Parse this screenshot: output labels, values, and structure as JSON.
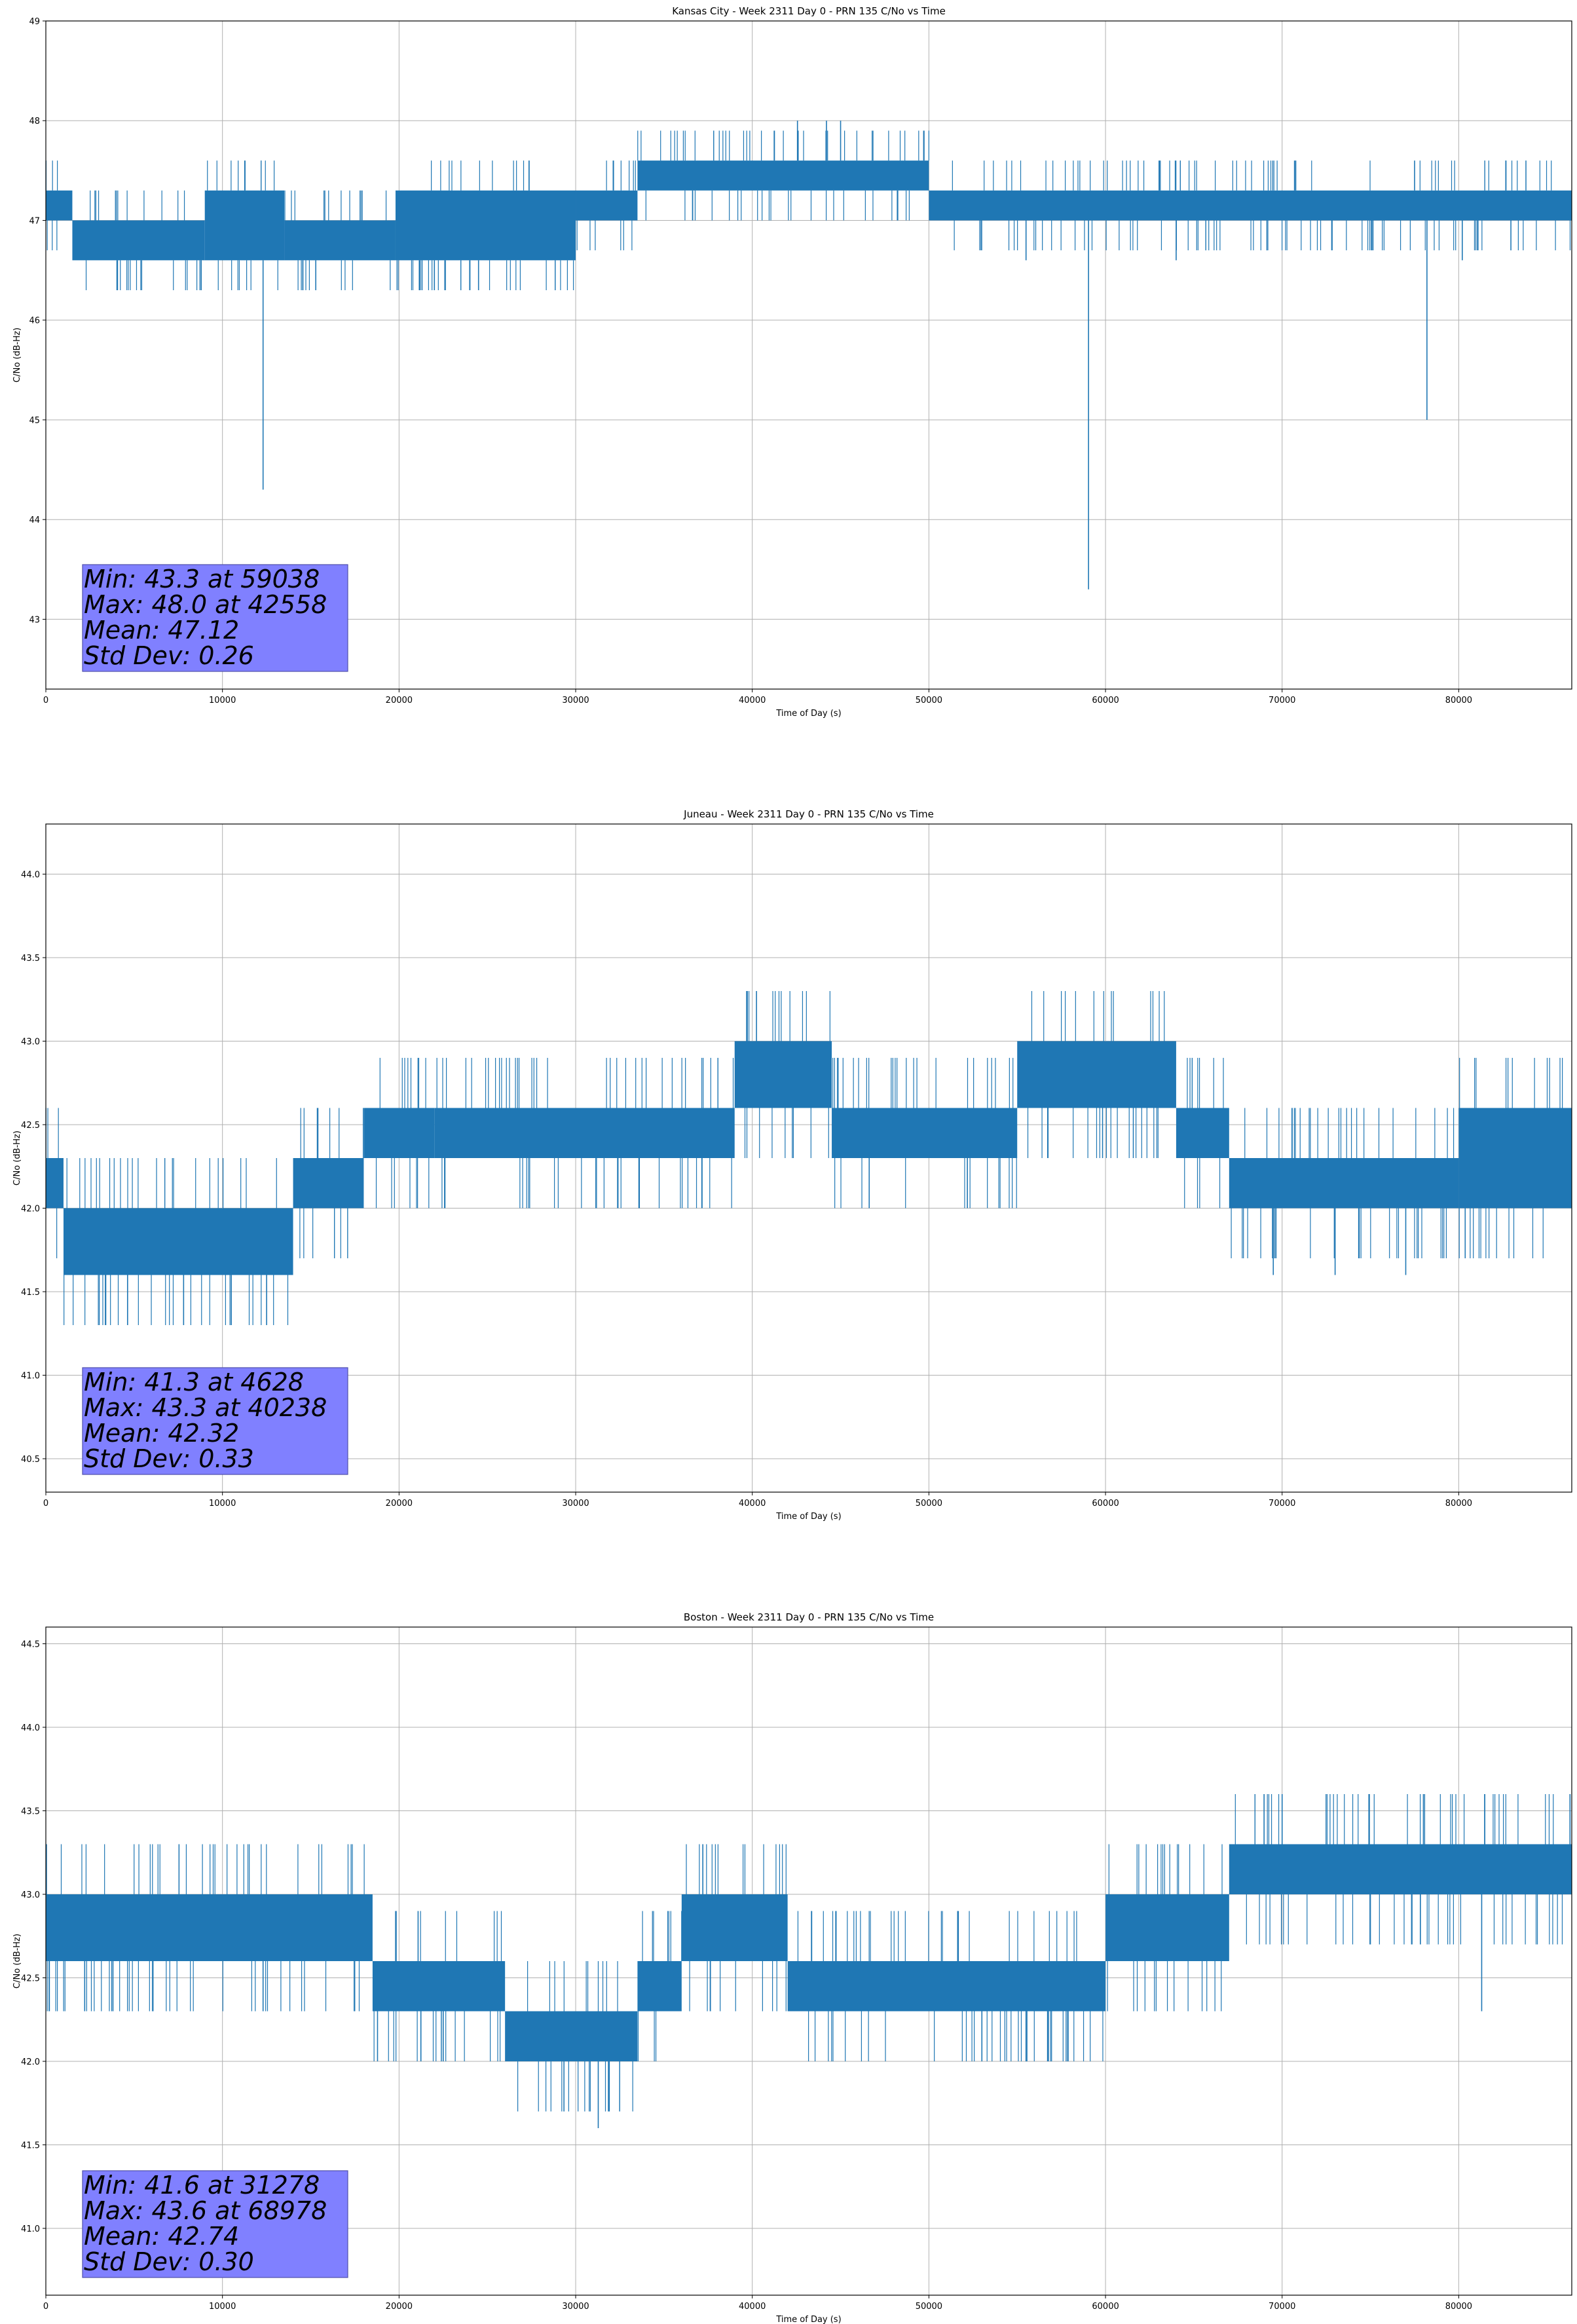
{
  "chart_data": [
    {
      "type": "line",
      "title": "Kansas City - Week 2311 Day 0 - PRN 135 C/No vs Time",
      "xlabel": "Time of Day (s)",
      "ylabel": "C/No (dB-Hz)",
      "xlim": [
        0,
        86400
      ],
      "ylim": [
        42.3,
        49.0
      ],
      "xticks": [
        0,
        10000,
        20000,
        30000,
        40000,
        50000,
        60000,
        70000,
        80000
      ],
      "xtick_labels": [
        "0",
        "10000",
        "20000",
        "30000",
        "40000",
        "50000",
        "60000",
        "70000",
        "80000"
      ],
      "yticks": [
        43,
        44,
        45,
        46,
        47,
        48,
        49
      ],
      "ytick_labels": [
        "43",
        "44",
        "45",
        "46",
        "47",
        "48",
        "49"
      ],
      "grid": true,
      "color": "#1f77b4",
      "annotation": [
        "Min: 43.3 at 59038",
        "Max: 48.0 at 42558",
        "Mean: 47.12",
        "Std Dev: 0.26"
      ],
      "series": [
        {
          "segments": [
            {
              "x": [
                0,
                1500
              ],
              "low": 47.0,
              "high": 47.3
            },
            {
              "x": [
                1500,
                9000
              ],
              "low": 46.6,
              "high": 47.0
            },
            {
              "x": [
                9000,
                13500
              ],
              "low": 46.6,
              "high": 47.3
            },
            {
              "x": [
                13500,
                19800
              ],
              "low": 46.6,
              "high": 47.0
            },
            {
              "x": [
                19800,
                30000
              ],
              "low": 46.6,
              "high": 47.3
            },
            {
              "x": [
                30000,
                33500
              ],
              "low": 47.0,
              "high": 47.3
            },
            {
              "x": [
                33500,
                50000
              ],
              "low": 47.3,
              "high": 47.6
            },
            {
              "x": [
                50000,
                86400
              ],
              "low": 47.0,
              "high": 47.3
            }
          ],
          "spikes": [
            {
              "x": 12300,
              "y": 44.3
            },
            {
              "x": 21300,
              "y": 46.3
            },
            {
              "x": 22000,
              "y": 46.3
            },
            {
              "x": 24500,
              "y": 46.3
            },
            {
              "x": 42558,
              "y": 48.0
            },
            {
              "x": 44200,
              "y": 48.0
            },
            {
              "x": 45000,
              "y": 48.0
            },
            {
              "x": 59038,
              "y": 43.3
            },
            {
              "x": 55500,
              "y": 46.6
            },
            {
              "x": 64000,
              "y": 46.6
            },
            {
              "x": 77500,
              "y": 47.6
            },
            {
              "x": 78200,
              "y": 45.0
            },
            {
              "x": 80200,
              "y": 46.6
            }
          ]
        }
      ]
    },
    {
      "type": "line",
      "title": "Juneau - Week 2311 Day 0 - PRN 135 C/No vs Time",
      "xlabel": "Time of Day (s)",
      "ylabel": "C/No (dB-Hz)",
      "xlim": [
        0,
        86400
      ],
      "ylim": [
        40.3,
        44.3
      ],
      "xticks": [
        0,
        10000,
        20000,
        30000,
        40000,
        50000,
        60000,
        70000,
        80000
      ],
      "xtick_labels": [
        "0",
        "10000",
        "20000",
        "30000",
        "40000",
        "50000",
        "60000",
        "70000",
        "80000"
      ],
      "yticks": [
        40.5,
        41.0,
        41.5,
        42.0,
        42.5,
        43.0,
        43.5,
        44.0
      ],
      "ytick_labels": [
        "40.5",
        "41.0",
        "41.5",
        "42.0",
        "42.5",
        "43.0",
        "43.5",
        "44.0"
      ],
      "grid": true,
      "color": "#1f77b4",
      "annotation": [
        "Min: 41.3 at 4628",
        "Max: 43.3 at 40238",
        "Mean: 42.32",
        "Std Dev: 0.33"
      ],
      "series": [
        {
          "segments": [
            {
              "x": [
                0,
                1000
              ],
              "low": 42.0,
              "high": 42.3
            },
            {
              "x": [
                1000,
                14000
              ],
              "low": 41.6,
              "high": 42.0
            },
            {
              "x": [
                14000,
                18000
              ],
              "low": 42.0,
              "high": 42.3
            },
            {
              "x": [
                18000,
                22000
              ],
              "low": 42.3,
              "high": 42.6
            },
            {
              "x": [
                22000,
                39000
              ],
              "low": 42.3,
              "high": 42.6
            },
            {
              "x": [
                39000,
                44500
              ],
              "low": 42.6,
              "high": 43.0
            },
            {
              "x": [
                44500,
                55000
              ],
              "low": 42.3,
              "high": 42.6
            },
            {
              "x": [
                55000,
                64000
              ],
              "low": 42.6,
              "high": 43.0
            },
            {
              "x": [
                64000,
                67000
              ],
              "low": 42.3,
              "high": 42.6
            },
            {
              "x": [
                67000,
                80000
              ],
              "low": 42.0,
              "high": 42.3
            },
            {
              "x": [
                80000,
                86400
              ],
              "low": 42.0,
              "high": 42.6
            }
          ],
          "spikes": [
            {
              "x": 4628,
              "y": 41.3
            },
            {
              "x": 7800,
              "y": 41.3
            },
            {
              "x": 10500,
              "y": 41.3
            },
            {
              "x": 12500,
              "y": 41.3
            },
            {
              "x": 40238,
              "y": 43.3
            },
            {
              "x": 69500,
              "y": 41.6
            },
            {
              "x": 73000,
              "y": 41.6
            },
            {
              "x": 77000,
              "y": 41.6
            }
          ]
        }
      ]
    },
    {
      "type": "line",
      "title": "Boston - Week 2311 Day 0 - PRN 135 C/No vs Time",
      "xlabel": "Time of Day (s)",
      "ylabel": "C/No (dB-Hz)",
      "xlim": [
        0,
        86400
      ],
      "ylim": [
        40.6,
        44.6
      ],
      "xticks": [
        0,
        10000,
        20000,
        30000,
        40000,
        50000,
        60000,
        70000,
        80000
      ],
      "xtick_labels": [
        "0",
        "10000",
        "20000",
        "30000",
        "40000",
        "50000",
        "60000",
        "70000",
        "80000"
      ],
      "yticks": [
        41.0,
        41.5,
        42.0,
        42.5,
        43.0,
        43.5,
        44.0,
        44.5
      ],
      "ytick_labels": [
        "41.0",
        "41.5",
        "42.0",
        "42.5",
        "43.0",
        "43.5",
        "44.0",
        "44.5"
      ],
      "grid": true,
      "color": "#1f77b4",
      "annotation": [
        "Min: 41.6 at 31278",
        "Max: 43.6 at 68978",
        "Mean: 42.74",
        "Std Dev: 0.30"
      ],
      "series": [
        {
          "segments": [
            {
              "x": [
                0,
                18500
              ],
              "low": 42.6,
              "high": 43.0
            },
            {
              "x": [
                18500,
                26000
              ],
              "low": 42.3,
              "high": 42.6
            },
            {
              "x": [
                26000,
                33500
              ],
              "low": 42.0,
              "high": 42.3
            },
            {
              "x": [
                33500,
                36000
              ],
              "low": 42.3,
              "high": 42.6
            },
            {
              "x": [
                36000,
                42000
              ],
              "low": 42.6,
              "high": 43.0
            },
            {
              "x": [
                42000,
                60000
              ],
              "low": 42.3,
              "high": 42.6
            },
            {
              "x": [
                60000,
                67000
              ],
              "low": 42.6,
              "high": 43.0
            },
            {
              "x": [
                67000,
                86400
              ],
              "low": 43.0,
              "high": 43.3
            }
          ],
          "spikes": [
            {
              "x": 2200,
              "y": 42.3
            },
            {
              "x": 3800,
              "y": 42.3
            },
            {
              "x": 12300,
              "y": 42.3
            },
            {
              "x": 22500,
              "y": 42.0
            },
            {
              "x": 31278,
              "y": 41.6
            },
            {
              "x": 37200,
              "y": 43.3
            },
            {
              "x": 53000,
              "y": 42.0
            },
            {
              "x": 55500,
              "y": 42.0
            },
            {
              "x": 68978,
              "y": 43.6
            },
            {
              "x": 70000,
              "y": 43.6
            },
            {
              "x": 78000,
              "y": 43.6
            },
            {
              "x": 81300,
              "y": 42.3
            },
            {
              "x": 86300,
              "y": 43.6
            }
          ]
        }
      ]
    }
  ]
}
